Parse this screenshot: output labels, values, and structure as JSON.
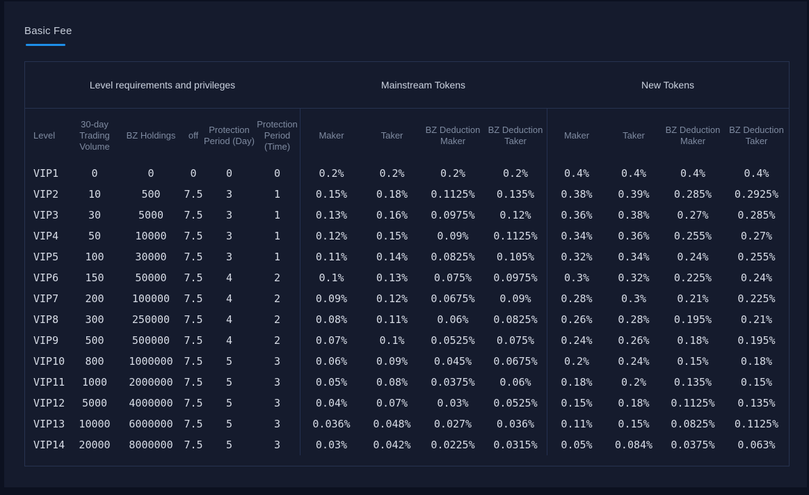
{
  "page": {
    "tab_label": "Basic Fee",
    "colors": {
      "accent": "#1e8ee8",
      "background": "#151b2d",
      "table_border": "#273350",
      "header_text": "#7f8ba1",
      "cell_text": "#d8dde7"
    }
  },
  "table": {
    "groups": [
      {
        "label": "Level requirements and privileges",
        "span": 6
      },
      {
        "label": "Mainstream Tokens",
        "span": 4
      },
      {
        "label": "New Tokens",
        "span": 4
      }
    ],
    "columns": [
      "Level",
      "30-day Trading Volume",
      "BZ Holdings",
      "off",
      "Protection Period (Day)",
      "Protection Period (Time)",
      "Maker",
      "Taker",
      "BZ Deduction Maker",
      "BZ Deduction Taker",
      "Maker",
      "Taker",
      "BZ Deduction Maker",
      "BZ Deduction Taker"
    ],
    "rows": [
      [
        "VIP1",
        "0",
        "0",
        "0",
        "0",
        "0",
        "0.2%",
        "0.2%",
        "0.2%",
        "0.2%",
        "0.4%",
        "0.4%",
        "0.4%",
        "0.4%"
      ],
      [
        "VIP2",
        "10",
        "500",
        "7.5",
        "3",
        "1",
        "0.15%",
        "0.18%",
        "0.1125%",
        "0.135%",
        "0.38%",
        "0.39%",
        "0.285%",
        "0.2925%"
      ],
      [
        "VIP3",
        "30",
        "5000",
        "7.5",
        "3",
        "1",
        "0.13%",
        "0.16%",
        "0.0975%",
        "0.12%",
        "0.36%",
        "0.38%",
        "0.27%",
        "0.285%"
      ],
      [
        "VIP4",
        "50",
        "10000",
        "7.5",
        "3",
        "1",
        "0.12%",
        "0.15%",
        "0.09%",
        "0.1125%",
        "0.34%",
        "0.36%",
        "0.255%",
        "0.27%"
      ],
      [
        "VIP5",
        "100",
        "30000",
        "7.5",
        "3",
        "1",
        "0.11%",
        "0.14%",
        "0.0825%",
        "0.105%",
        "0.32%",
        "0.34%",
        "0.24%",
        "0.255%"
      ],
      [
        "VIP6",
        "150",
        "50000",
        "7.5",
        "4",
        "2",
        "0.1%",
        "0.13%",
        "0.075%",
        "0.0975%",
        "0.3%",
        "0.32%",
        "0.225%",
        "0.24%"
      ],
      [
        "VIP7",
        "200",
        "100000",
        "7.5",
        "4",
        "2",
        "0.09%",
        "0.12%",
        "0.0675%",
        "0.09%",
        "0.28%",
        "0.3%",
        "0.21%",
        "0.225%"
      ],
      [
        "VIP8",
        "300",
        "250000",
        "7.5",
        "4",
        "2",
        "0.08%",
        "0.11%",
        "0.06%",
        "0.0825%",
        "0.26%",
        "0.28%",
        "0.195%",
        "0.21%"
      ],
      [
        "VIP9",
        "500",
        "500000",
        "7.5",
        "4",
        "2",
        "0.07%",
        "0.1%",
        "0.0525%",
        "0.075%",
        "0.24%",
        "0.26%",
        "0.18%",
        "0.195%"
      ],
      [
        "VIP10",
        "800",
        "1000000",
        "7.5",
        "5",
        "3",
        "0.06%",
        "0.09%",
        "0.045%",
        "0.0675%",
        "0.2%",
        "0.24%",
        "0.15%",
        "0.18%"
      ],
      [
        "VIP11",
        "1000",
        "2000000",
        "7.5",
        "5",
        "3",
        "0.05%",
        "0.08%",
        "0.0375%",
        "0.06%",
        "0.18%",
        "0.2%",
        "0.135%",
        "0.15%"
      ],
      [
        "VIP12",
        "5000",
        "4000000",
        "7.5",
        "5",
        "3",
        "0.04%",
        "0.07%",
        "0.03%",
        "0.0525%",
        "0.15%",
        "0.18%",
        "0.1125%",
        "0.135%"
      ],
      [
        "VIP13",
        "10000",
        "6000000",
        "7.5",
        "5",
        "3",
        "0.036%",
        "0.048%",
        "0.027%",
        "0.036%",
        "0.11%",
        "0.15%",
        "0.0825%",
        "0.1125%"
      ],
      [
        "VIP14",
        "20000",
        "8000000",
        "7.5",
        "5",
        "3",
        "0.03%",
        "0.042%",
        "0.0225%",
        "0.0315%",
        "0.05%",
        "0.084%",
        "0.0375%",
        "0.063%"
      ]
    ]
  }
}
